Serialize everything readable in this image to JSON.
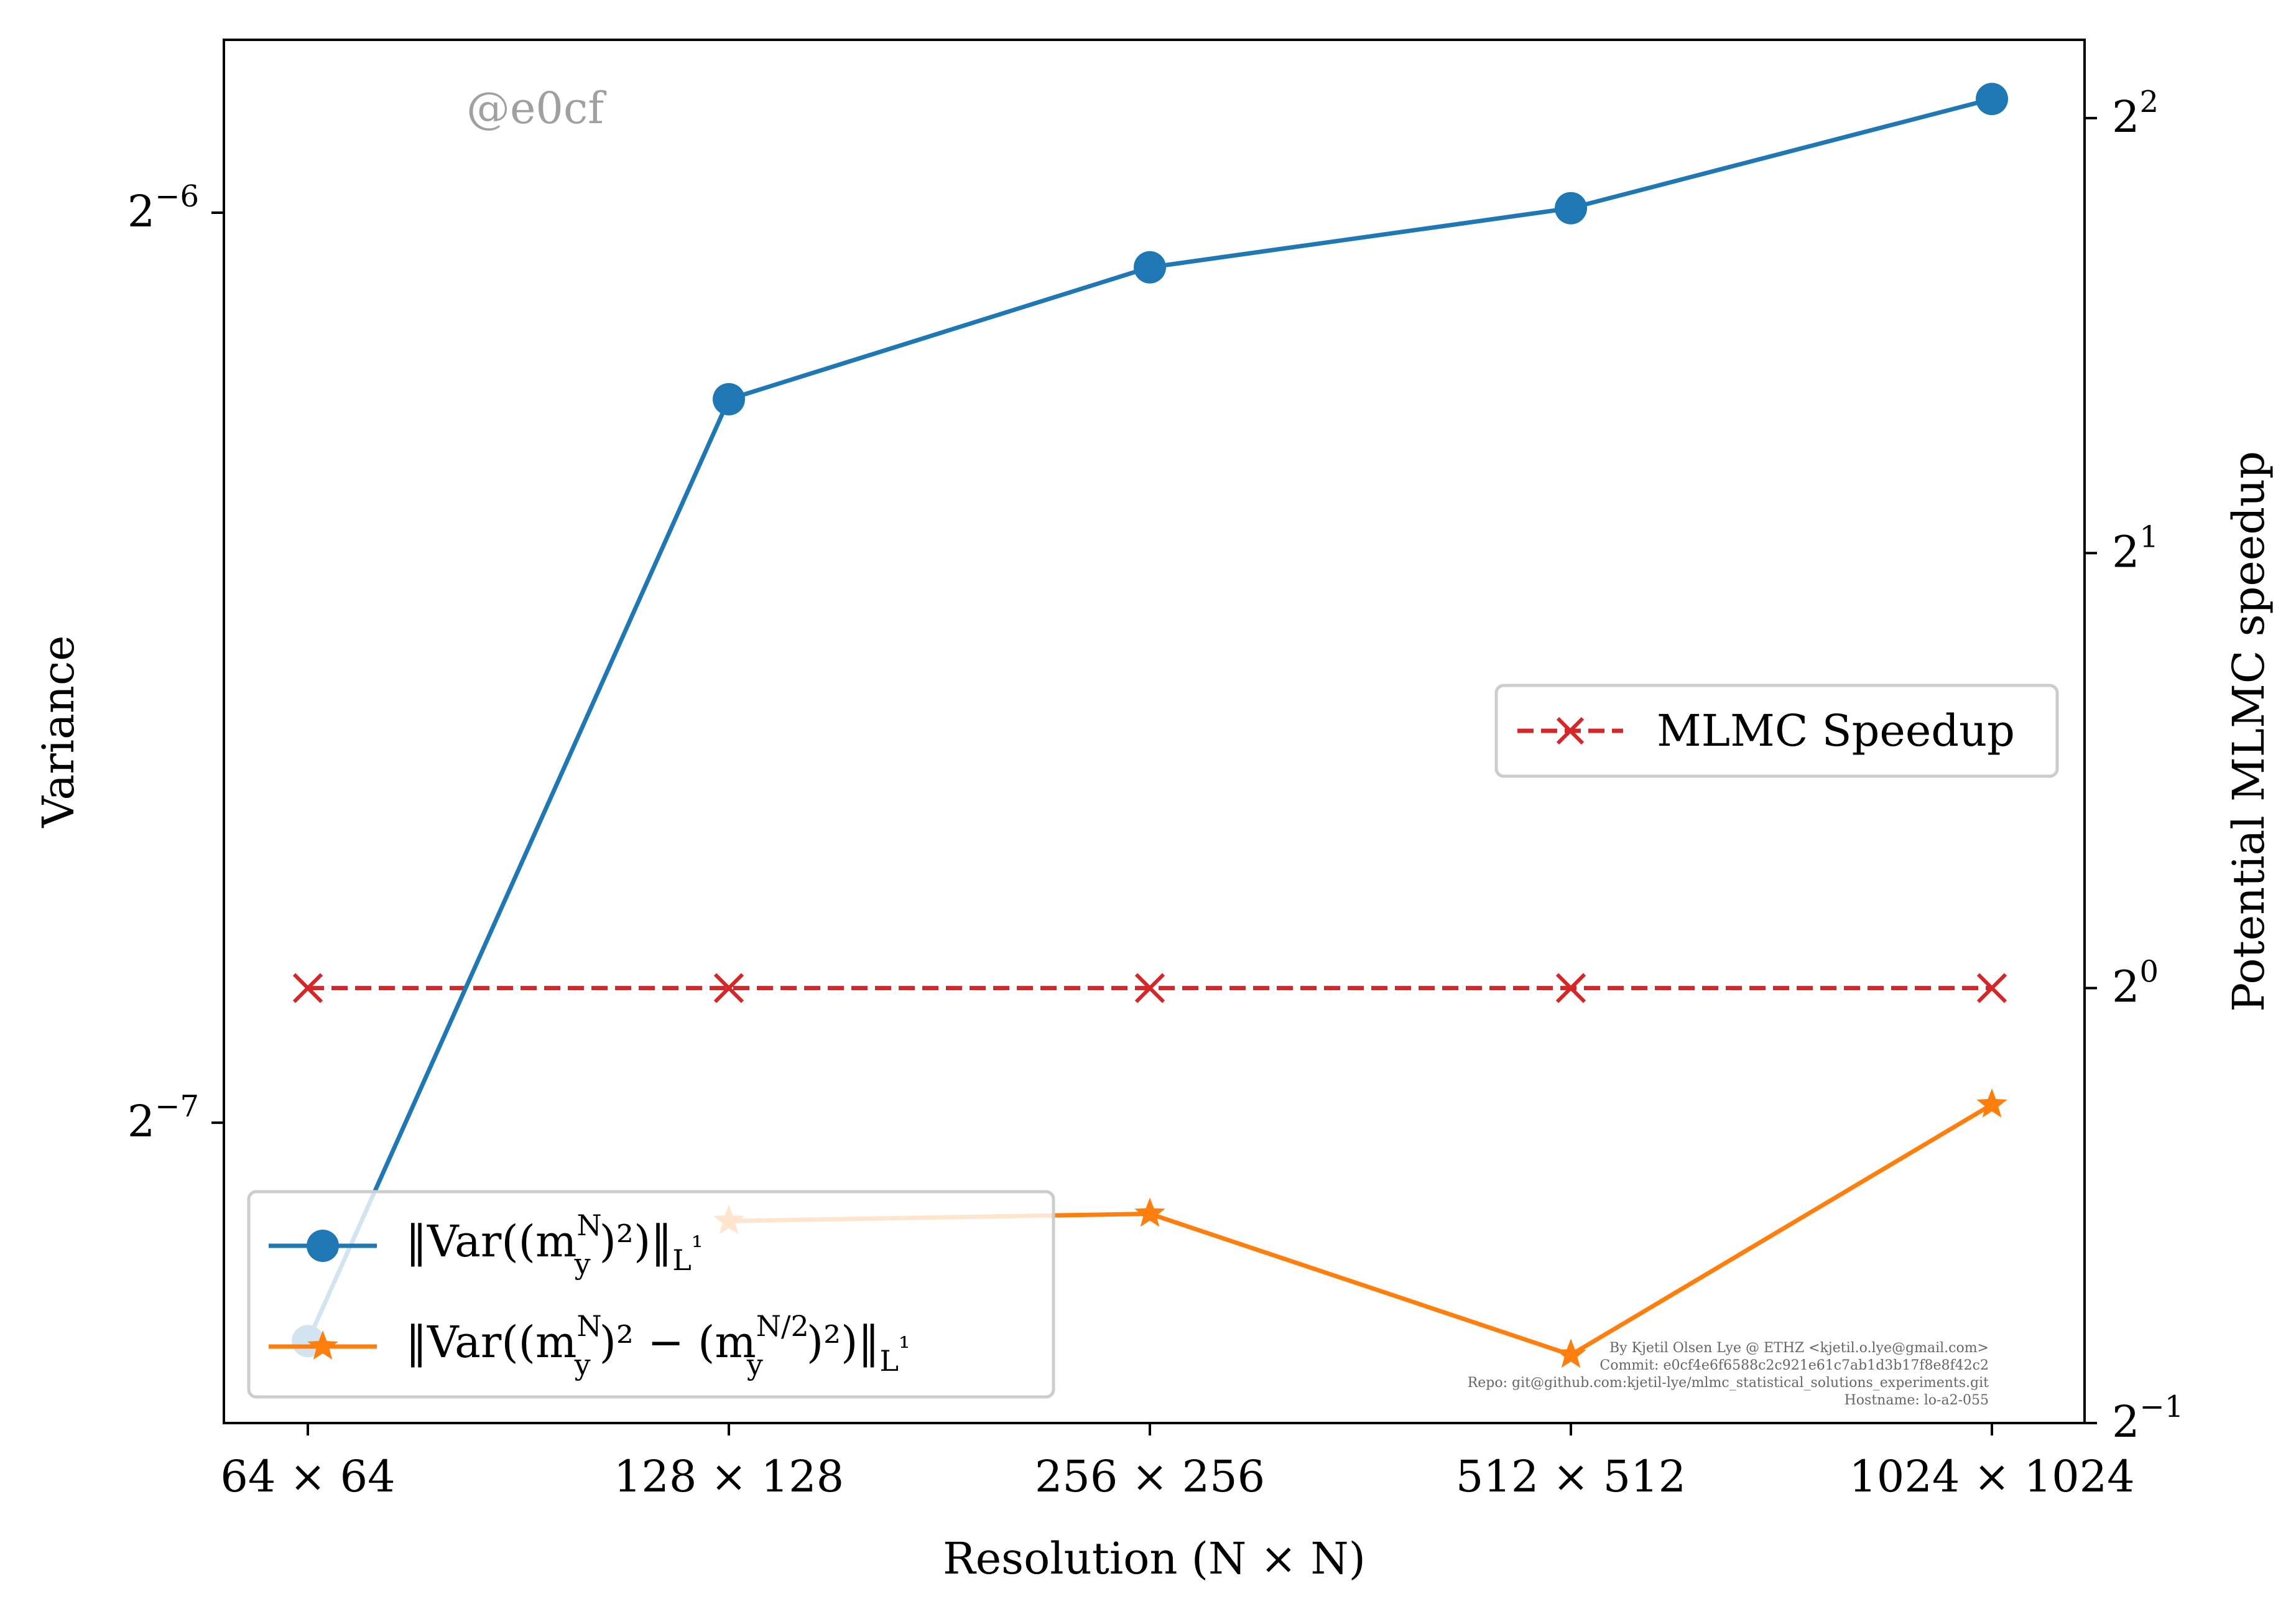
{
  "chart_data": {
    "type": "line",
    "x_label": "Resolution (N × N)",
    "y_left_label": "Variance",
    "y_right_label": "Potential MLMC speedup",
    "categories": [
      "64 × 64",
      "128 × 128",
      "256 × 256",
      "512 × 512",
      "1024 × 1024"
    ],
    "left_axis": {
      "scale": "log2",
      "ylim_exp": [
        -7.33,
        -5.81
      ],
      "ticks": [
        {
          "base": "2",
          "exp": "−6",
          "value_exp": -6
        },
        {
          "base": "2",
          "exp": "−7",
          "value_exp": -7
        }
      ]
    },
    "right_axis": {
      "scale": "log2",
      "ylim_exp": [
        -1,
        2.18
      ],
      "ticks": [
        {
          "base": "2",
          "exp": "2",
          "value_exp": 2
        },
        {
          "base": "2",
          "exp": "1",
          "value_exp": 1
        },
        {
          "base": "2",
          "exp": "0",
          "value_exp": 0
        },
        {
          "base": "2",
          "exp": "−1",
          "value_exp": -1
        }
      ]
    },
    "series": [
      {
        "name": "‖Var((m_y^N)^2)‖_{L^1}",
        "axis": "left",
        "color": "#1f77b4",
        "marker": "circle",
        "linestyle": "solid",
        "values_log2": [
          -7.24,
          -6.205,
          -6.06,
          -5.995,
          -5.875
        ]
      },
      {
        "name": "‖Var((m_y^N)^2 − (m_y^{N/2})^2)‖_{L^1}",
        "axis": "left",
        "color": "#ff7f0e",
        "marker": "star",
        "linestyle": "solid",
        "values_log2": [
          null,
          -7.108,
          -7.1,
          -7.255,
          -6.98
        ]
      },
      {
        "name": "MLMC Speedup",
        "axis": "right",
        "color": "#d62728",
        "marker": "x",
        "linestyle": "dashed",
        "values_log2": [
          0,
          0,
          0,
          0,
          0
        ]
      }
    ],
    "legends": {
      "left": {
        "entry1_main": "‖Var((m",
        "entry1_sup": "N",
        "entry1_sub": "y",
        "entry1_tail": ")²)‖",
        "entry1_norm": "L",
        "entry2_main": "‖Var((m",
        "entry2_sup": "N",
        "entry2_sub": "y",
        "entry2_mid": ")² − (m",
        "entry2_sup2": "N/2",
        "entry2_sub2": "y",
        "entry2_tail": ")²)‖",
        "entry2_norm": "L"
      },
      "right": {
        "entry": "MLMC Speedup"
      }
    },
    "watermark": "@e0cf",
    "credits": [
      "By Kjetil Olsen Lye @ ETHZ <kjetil.o.lye@gmail.com>",
      "Commit: e0cf4e6f6588c2c921e61c7ab1d3b17f8e8f42c2",
      "Repo: git@github.com:kjetil-lye/mlmc_statistical_solutions_experiments.git",
      "Hostname: lo-a2-055"
    ]
  }
}
